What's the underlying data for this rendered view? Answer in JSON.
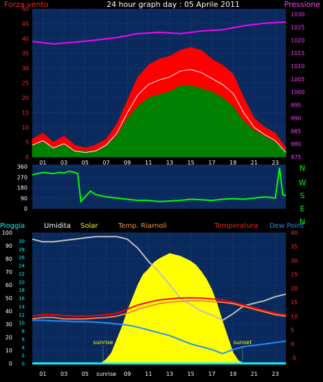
{
  "title": "24 hour graph day : 05 Aprile 2011",
  "colors": {
    "background": "#000000",
    "plot_bg": "#0a2a5e",
    "grid": "#2a4a88",
    "wind_gust": "#ff0000",
    "wind_avg": "#008000",
    "pressure": "#ff00ff",
    "direction": "#00ff00",
    "humidity": "#c0c0c0",
    "solar": "#ffff00",
    "wind_chill": "#ff8040",
    "temperature": "#ff0000",
    "dew_point": "#1e90ff",
    "rain": "#00ffff"
  },
  "chart_data": [
    {
      "type": "line",
      "name": "wind-pressure",
      "left_label": "Forza vento",
      "right_label": "Pressione",
      "x_ticks": [
        "01",
        "03",
        "05",
        "07",
        "09",
        "11",
        "13",
        "15",
        "17",
        "19",
        "21",
        "23"
      ],
      "x_range": [
        0,
        24
      ],
      "y_left_ticks": [
        0,
        5,
        10,
        15,
        20,
        25,
        30,
        35,
        40,
        45,
        50
      ],
      "y_left_range": [
        0,
        50
      ],
      "y_right_ticks": [
        975,
        980,
        985,
        990,
        995,
        1000,
        1005,
        1010,
        1015,
        1020,
        1025,
        1030
      ],
      "y_right_range": [
        975,
        1032
      ],
      "wind_gust": [
        [
          0,
          6
        ],
        [
          1,
          8
        ],
        [
          2,
          5
        ],
        [
          3,
          7
        ],
        [
          4,
          4
        ],
        [
          5,
          3
        ],
        [
          6,
          4
        ],
        [
          7,
          6
        ],
        [
          8,
          11
        ],
        [
          9,
          19
        ],
        [
          10,
          27
        ],
        [
          11,
          31
        ],
        [
          12,
          33
        ],
        [
          13,
          34
        ],
        [
          14,
          36
        ],
        [
          15,
          37
        ],
        [
          16,
          36
        ],
        [
          17,
          33
        ],
        [
          18,
          31
        ],
        [
          19,
          28
        ],
        [
          20,
          20
        ],
        [
          21,
          13
        ],
        [
          22,
          10
        ],
        [
          23,
          8
        ],
        [
          24,
          3
        ]
      ],
      "wind_avg": [
        [
          0,
          4
        ],
        [
          1,
          5
        ],
        [
          2,
          3
        ],
        [
          3,
          4
        ],
        [
          4,
          2
        ],
        [
          5,
          2
        ],
        [
          6,
          2
        ],
        [
          7,
          4
        ],
        [
          8,
          7
        ],
        [
          9,
          13
        ],
        [
          10,
          17
        ],
        [
          11,
          20
        ],
        [
          12,
          21
        ],
        [
          13,
          22
        ],
        [
          14,
          24
        ],
        [
          15,
          24
        ],
        [
          16,
          23
        ],
        [
          17,
          22
        ],
        [
          18,
          20
        ],
        [
          19,
          17
        ],
        [
          20,
          12
        ],
        [
          21,
          9
        ],
        [
          22,
          7
        ],
        [
          23,
          5
        ],
        [
          24,
          2
        ]
      ],
      "pressure": [
        [
          0,
          1019.5
        ],
        [
          2,
          1018.5
        ],
        [
          4,
          1019.2
        ],
        [
          6,
          1020
        ],
        [
          8,
          1021
        ],
        [
          10,
          1022.5
        ],
        [
          12,
          1023
        ],
        [
          14,
          1022.5
        ],
        [
          16,
          1023.5
        ],
        [
          18,
          1024
        ],
        [
          20,
          1025.5
        ],
        [
          22,
          1026.5
        ],
        [
          24,
          1027
        ]
      ]
    },
    {
      "type": "scatter",
      "name": "wind-direction",
      "left_label": "",
      "right_labels": [
        "N",
        "W",
        "S",
        "E",
        "N"
      ],
      "x_range": [
        0,
        24
      ],
      "y_ticks": [
        0,
        90,
        180,
        270,
        360
      ],
      "y_range": [
        0,
        360
      ],
      "direction": [
        [
          0,
          290
        ],
        [
          0.5,
          300
        ],
        [
          1,
          310
        ],
        [
          1.5,
          305
        ],
        [
          2,
          300
        ],
        [
          2.5,
          310
        ],
        [
          3,
          305
        ],
        [
          3.5,
          320
        ],
        [
          4,
          310
        ],
        [
          4.3,
          300
        ],
        [
          4.6,
          60
        ],
        [
          5,
          100
        ],
        [
          5.5,
          150
        ],
        [
          6,
          120
        ],
        [
          6.5,
          110
        ],
        [
          7,
          100
        ],
        [
          8,
          90
        ],
        [
          9,
          80
        ],
        [
          10,
          70
        ],
        [
          11,
          70
        ],
        [
          12,
          60
        ],
        [
          13,
          65
        ],
        [
          14,
          70
        ],
        [
          15,
          80
        ],
        [
          16,
          75
        ],
        [
          17,
          70
        ],
        [
          18,
          80
        ],
        [
          19,
          85
        ],
        [
          20,
          80
        ],
        [
          21,
          90
        ],
        [
          22,
          100
        ],
        [
          23,
          90
        ],
        [
          23.4,
          350
        ],
        [
          23.7,
          120
        ],
        [
          24,
          110
        ]
      ]
    },
    {
      "type": "area",
      "name": "weather",
      "top_labels": [
        "Pioggia",
        "Umidita",
        "Solar",
        "Temp. Riarnoli",
        "Temperatura",
        "Dew Point"
      ],
      "x_ticks": [
        "01",
        "03",
        "05",
        "sunrise",
        "09",
        "11",
        "13",
        "15",
        "17",
        "19",
        "21",
        "23"
      ],
      "x_range": [
        0,
        24
      ],
      "y_left_ticks": [
        0,
        10,
        20,
        30,
        40,
        50,
        60,
        70,
        80,
        90,
        100
      ],
      "y_left_range": [
        0,
        100
      ],
      "y_inner_ticks": [
        0,
        2,
        4,
        6,
        8,
        10,
        12,
        14,
        16,
        18,
        20,
        22,
        24,
        26,
        28,
        30
      ],
      "y_inner_range": [
        0,
        32
      ],
      "y_right_ticks": [
        -5,
        0,
        5,
        10,
        15,
        20,
        25,
        30,
        35,
        40
      ],
      "y_right_range": [
        -7,
        40
      ],
      "annotations": [
        {
          "text": "sunrise",
          "x": 6.7
        },
        {
          "text": "sunset",
          "x": 19.9
        }
      ],
      "humidity": [
        [
          0,
          95
        ],
        [
          1,
          93
        ],
        [
          2,
          93
        ],
        [
          3,
          94
        ],
        [
          4,
          95
        ],
        [
          5,
          96
        ],
        [
          6,
          97
        ],
        [
          7,
          97
        ],
        [
          8,
          97
        ],
        [
          9,
          95
        ],
        [
          10,
          88
        ],
        [
          11,
          78
        ],
        [
          12,
          70
        ],
        [
          13,
          60
        ],
        [
          14,
          50
        ],
        [
          15,
          45
        ],
        [
          16,
          40
        ],
        [
          17,
          37
        ],
        [
          18,
          33
        ],
        [
          19,
          38
        ],
        [
          20,
          44
        ],
        [
          21,
          46
        ],
        [
          22,
          48
        ],
        [
          23,
          51
        ],
        [
          24,
          53
        ]
      ],
      "solar": [
        [
          6.5,
          0
        ],
        [
          7,
          3
        ],
        [
          7.5,
          8
        ],
        [
          8,
          18
        ],
        [
          8.5,
          28
        ],
        [
          9,
          40
        ],
        [
          9.5,
          50
        ],
        [
          10,
          60
        ],
        [
          10.5,
          68
        ],
        [
          11,
          72
        ],
        [
          11.5,
          77
        ],
        [
          12,
          80
        ],
        [
          12.5,
          82
        ],
        [
          13,
          84
        ],
        [
          13.5,
          83
        ],
        [
          14,
          82
        ],
        [
          14.5,
          80
        ],
        [
          15,
          78
        ],
        [
          15.5,
          75
        ],
        [
          16,
          70
        ],
        [
          16.5,
          64
        ],
        [
          17,
          56
        ],
        [
          17.5,
          45
        ],
        [
          18,
          32
        ],
        [
          18.5,
          20
        ],
        [
          19,
          8
        ],
        [
          19.5,
          2
        ],
        [
          20,
          0
        ]
      ],
      "temperature": [
        [
          0,
          10
        ],
        [
          1,
          10.5
        ],
        [
          2,
          10.5
        ],
        [
          3,
          10.2
        ],
        [
          4,
          10
        ],
        [
          5,
          10
        ],
        [
          6,
          10.2
        ],
        [
          7,
          10.5
        ],
        [
          8,
          11
        ],
        [
          9,
          12.5
        ],
        [
          10,
          14
        ],
        [
          11,
          15
        ],
        [
          12,
          15.8
        ],
        [
          13,
          16.2
        ],
        [
          14,
          16.5
        ],
        [
          15,
          16.6
        ],
        [
          16,
          16.5
        ],
        [
          17,
          16.2
        ],
        [
          18,
          15.8
        ],
        [
          19,
          15
        ],
        [
          20,
          14
        ],
        [
          21,
          13
        ],
        [
          22,
          12
        ],
        [
          23,
          11
        ],
        [
          24,
          10.5
        ]
      ],
      "wind_chill": [
        [
          0,
          9
        ],
        [
          1,
          9.5
        ],
        [
          2,
          9.5
        ],
        [
          3,
          9
        ],
        [
          4,
          9
        ],
        [
          5,
          9
        ],
        [
          6,
          9.3
        ],
        [
          7,
          9.5
        ],
        [
          8,
          10
        ],
        [
          9,
          11
        ],
        [
          10,
          12.5
        ],
        [
          11,
          13.5
        ],
        [
          12,
          14.5
        ],
        [
          13,
          15
        ],
        [
          14,
          15.3
        ],
        [
          15,
          15.5
        ],
        [
          16,
          15.5
        ],
        [
          17,
          15.2
        ],
        [
          18,
          15
        ],
        [
          19,
          14.5
        ],
        [
          20,
          13.5
        ],
        [
          21,
          12.5
        ],
        [
          22,
          11.5
        ],
        [
          23,
          10.5
        ],
        [
          24,
          10
        ]
      ],
      "dew_point": [
        [
          0,
          8.5
        ],
        [
          1,
          8.5
        ],
        [
          2,
          8.3
        ],
        [
          3,
          8.2
        ],
        [
          4,
          8
        ],
        [
          5,
          8
        ],
        [
          6,
          7.8
        ],
        [
          7,
          7.6
        ],
        [
          8,
          7.2
        ],
        [
          9,
          6.8
        ],
        [
          10,
          6
        ],
        [
          11,
          5
        ],
        [
          12,
          4
        ],
        [
          13,
          3
        ],
        [
          14,
          1.5
        ],
        [
          15,
          0
        ],
        [
          16,
          -1
        ],
        [
          17,
          -2
        ],
        [
          18,
          -3.5
        ],
        [
          19,
          -2
        ],
        [
          20,
          -1
        ],
        [
          21,
          -0.5
        ],
        [
          22,
          0
        ],
        [
          23,
          0.5
        ],
        [
          24,
          1
        ]
      ],
      "rain": [
        [
          0,
          0
        ],
        [
          24,
          0
        ]
      ]
    }
  ]
}
